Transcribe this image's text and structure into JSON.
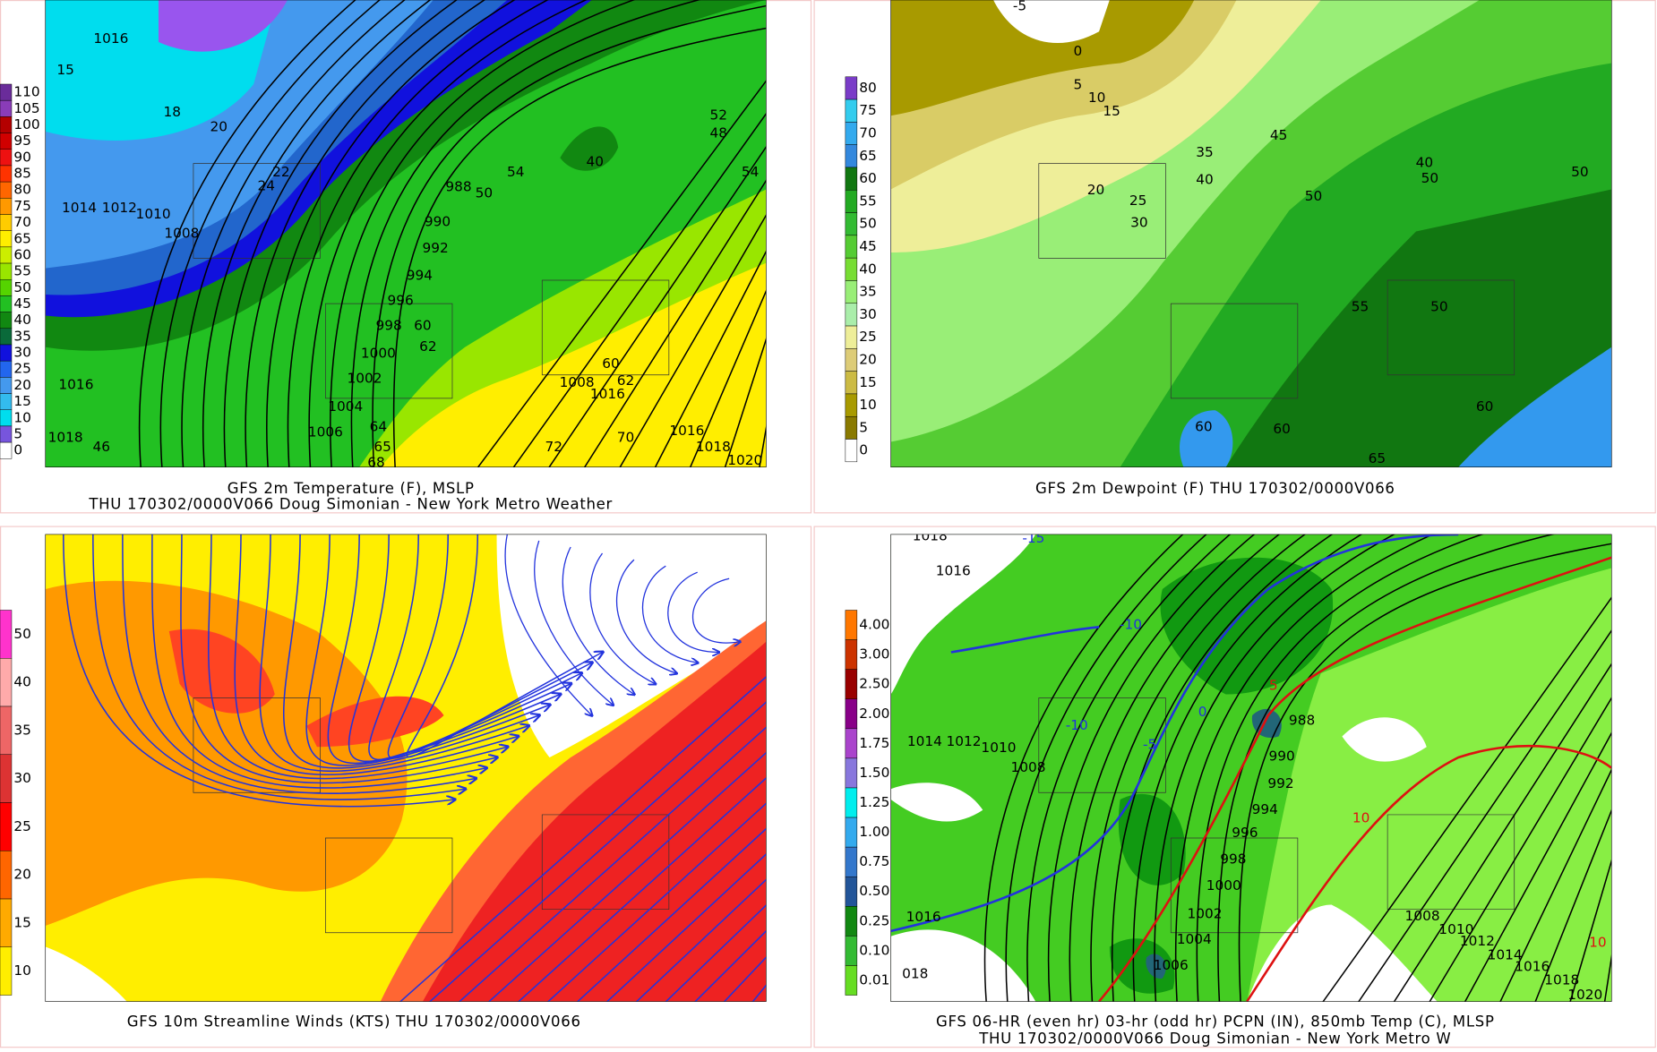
{
  "panels": [
    {
      "title": [
        "GFS 2m Temperature (F), MSLP",
        "THU 170302/0000V066 Doug Simonian - New York Metro Weather"
      ],
      "colorbar": {
        "labels": [
          110,
          105,
          100,
          95,
          90,
          85,
          80,
          75,
          70,
          65,
          60,
          55,
          50,
          45,
          40,
          35,
          30,
          25,
          20,
          15,
          10,
          5,
          0
        ],
        "colors": [
          "#6a2c9a",
          "#8a3cb8",
          "#b40000",
          "#d00000",
          "#ee1111",
          "#ff3300",
          "#ff6600",
          "#ff9900",
          "#ffcc00",
          "#ffee00",
          "#ccee00",
          "#99e600",
          "#55d400",
          "#22c022",
          "#118811",
          "#0a6a3a",
          "#1111dd",
          "#2266ee",
          "#4499ee",
          "#33bbee",
          "#00ddee",
          "#7755dd",
          "#ffffff"
        ]
      },
      "map_labels": [
        1016,
        15,
        18,
        20,
        1014,
        1012,
        1010,
        1008,
        22,
        24,
        988,
        50,
        54,
        990,
        992,
        994,
        996,
        998,
        60,
        62,
        1000,
        1002,
        1004,
        1006,
        64,
        65,
        68,
        1016,
        1018,
        46,
        60,
        62,
        1008,
        1016,
        70,
        72,
        1016,
        1018,
        1020,
        52,
        48,
        54,
        40
      ]
    },
    {
      "title": [
        "GFS 2m Dewpoint (F)  THU 170302/0000V066"
      ],
      "colorbar": {
        "labels": [
          80,
          75,
          70,
          65,
          60,
          55,
          50,
          45,
          40,
          35,
          30,
          25,
          20,
          15,
          10,
          5,
          0
        ],
        "colors": [
          "#7a3cc8",
          "#33ccee",
          "#33aaee",
          "#3388dd",
          "#117711",
          "#22aa22",
          "#33bb33",
          "#55cc33",
          "#77dd33",
          "#99ee77",
          "#aaeeaa",
          "#eeee99",
          "#ddcc77",
          "#ccbb44",
          "#a89a00",
          "#8a7a00",
          "#ffffff"
        ]
      },
      "map_labels": [
        -5,
        0,
        5,
        10,
        15,
        20,
        25,
        30,
        35,
        40,
        45,
        50,
        40,
        50,
        50,
        55,
        50,
        60,
        60,
        60,
        65
      ]
    },
    {
      "title": [
        "GFS 10m Streamline Winds (KTS)  THU 170302/0000V066"
      ],
      "colorbar": {
        "labels": [
          50,
          40,
          35,
          30,
          25,
          20,
          15,
          10
        ],
        "colors": [
          "#ff33cc",
          "#ffaaaa",
          "#ee6666",
          "#dd3333",
          "#ff0000",
          "#ff6600",
          "#ffaa00",
          "#ffee00"
        ]
      },
      "map_labels": []
    },
    {
      "title": [
        "GFS 06-HR (even hr) 03-hr (odd hr) PCPN (IN), 850mb Temp (C), MLSP",
        "THU 170302/0000V066 Doug Simonian - New York Metro W"
      ],
      "colorbar": {
        "labels": [
          "4.00",
          "3.00",
          "2.50",
          "2.00",
          "1.75",
          "1.50",
          "1.25",
          "1.00",
          "0.75",
          "0.50",
          "0.25",
          "0.10",
          "0.01"
        ],
        "colors": [
          "#ff7700",
          "#cc3300",
          "#990000",
          "#880088",
          "#aa44cc",
          "#8877dd",
          "#00eeee",
          "#33aaee",
          "#3377cc",
          "#225599",
          "#118811",
          "#33bb33",
          "#66dd22"
        ]
      },
      "map_labels": [
        1018,
        1016,
        -15,
        -10,
        -10,
        1014,
        1012,
        1010,
        1008,
        -5,
        0,
        988,
        990,
        992,
        994,
        996,
        998,
        1000,
        1002,
        1004,
        1006,
        1016,
        "018",
        10,
        1008,
        1010,
        1012,
        1014,
        1016,
        1018,
        1020,
        10,
        5
      ]
    }
  ]
}
